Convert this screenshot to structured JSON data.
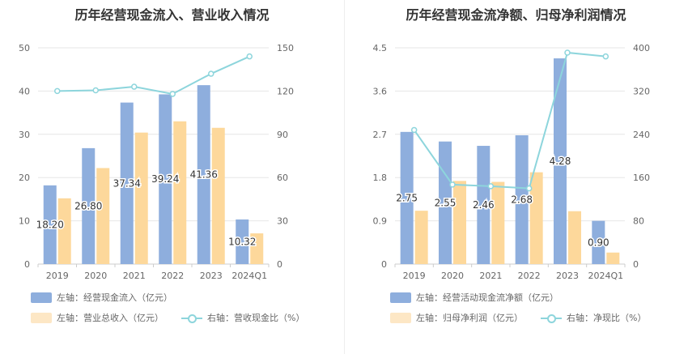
{
  "colors": {
    "bar1": "#8eaedd",
    "bar2": "#fdd89b",
    "line": "#8dd5dc",
    "grid": "#e6e6e6",
    "axis_text": "#666666"
  },
  "chart_data": [
    {
      "type": "bar",
      "title": "历年经营现金流入、营业收入情况",
      "categories": [
        "2019",
        "2020",
        "2021",
        "2022",
        "2023",
        "2024Q1"
      ],
      "left_ticks": [
        "0",
        "10",
        "20",
        "30",
        "40",
        "50"
      ],
      "right_ticks": [
        "0",
        "30",
        "60",
        "90",
        "120",
        "150"
      ],
      "ylim_left": [
        0,
        50
      ],
      "ylim_right": [
        0,
        150
      ],
      "series": [
        {
          "name": "左轴：经营现金流入（亿元）",
          "axis": "left",
          "kind": "bar",
          "values": [
            18.2,
            26.8,
            37.34,
            39.24,
            41.36,
            10.32
          ],
          "labels": [
            "18.20",
            "26.80",
            "37.34",
            "39.24",
            "41.36",
            "10.32"
          ]
        },
        {
          "name": "左轴：营业总收入（亿元）",
          "axis": "left",
          "kind": "bar",
          "values": [
            15.2,
            22.2,
            30.4,
            33.0,
            31.5,
            7.1
          ]
        },
        {
          "name": "右轴：营收现金比（%）",
          "axis": "right",
          "kind": "line",
          "values": [
            120,
            120.5,
            123,
            118,
            132,
            144
          ]
        }
      ]
    },
    {
      "type": "bar",
      "title": "历年经营现金流净额、归母净利润情况",
      "categories": [
        "2019",
        "2020",
        "2021",
        "2022",
        "2023",
        "2024Q1"
      ],
      "left_ticks": [
        "0",
        "0.9",
        "1.8",
        "2.7",
        "3.6",
        "4.5"
      ],
      "right_ticks": [
        "0",
        "80",
        "160",
        "240",
        "320",
        "400"
      ],
      "ylim_left": [
        0,
        4.5
      ],
      "ylim_right": [
        0,
        400
      ],
      "series": [
        {
          "name": "左轴：经营活动现金流净额（亿元）",
          "axis": "left",
          "kind": "bar",
          "values": [
            2.75,
            2.55,
            2.46,
            2.68,
            4.28,
            0.9
          ],
          "labels": [
            "2.75",
            "2.55",
            "2.46",
            "2.68",
            "4.28",
            "0.90"
          ]
        },
        {
          "name": "左轴：归母净利润（亿元）",
          "axis": "left",
          "kind": "bar",
          "values": [
            1.11,
            1.73,
            1.71,
            1.91,
            1.1,
            0.24
          ]
        },
        {
          "name": "右轴：净现比（%）",
          "axis": "right",
          "kind": "line",
          "values": [
            248,
            147,
            144,
            140,
            391,
            384
          ]
        }
      ]
    }
  ]
}
